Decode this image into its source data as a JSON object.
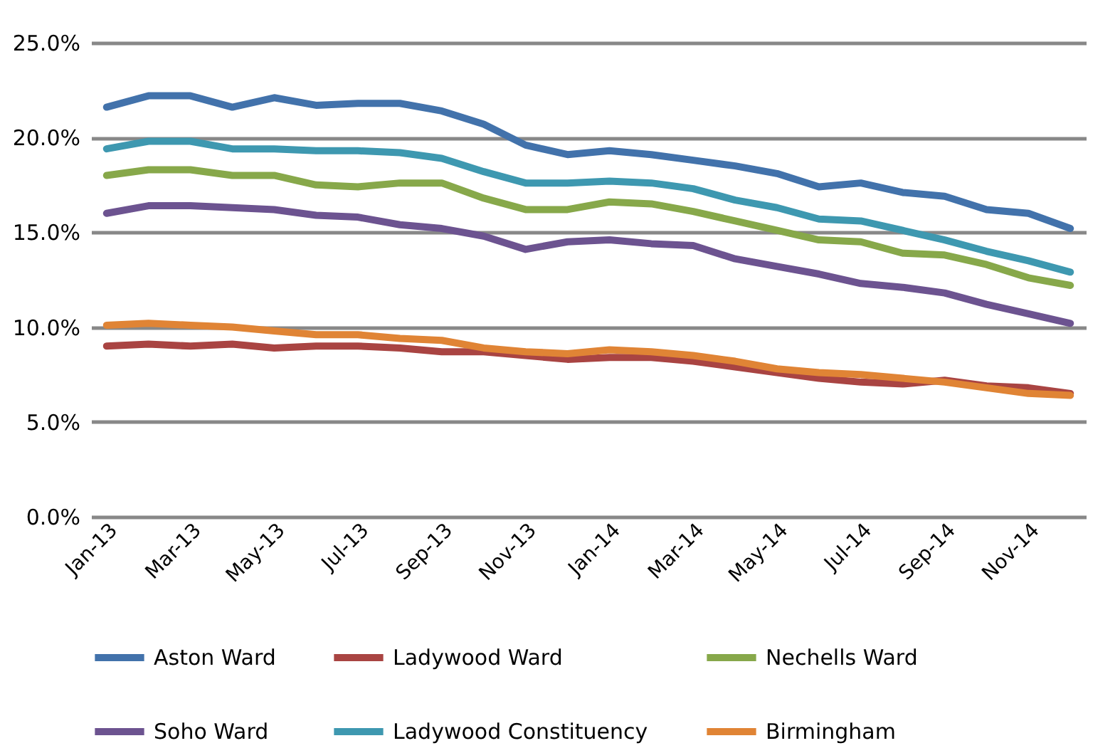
{
  "chart_data": {
    "type": "line",
    "categories": [
      "Jan-13",
      null,
      "Mar-13",
      null,
      "May-13",
      null,
      "Jul-13",
      null,
      "Sep-13",
      null,
      "Nov-13",
      null,
      "Jan-14",
      null,
      "Mar-14",
      null,
      "May-14",
      null,
      "Jul-14",
      null,
      "Sep-14",
      null,
      "Nov-14",
      null
    ],
    "series": [
      {
        "name": "Aston Ward",
        "color": "#4272ab",
        "values": [
          21.6,
          22.2,
          22.2,
          21.6,
          22.1,
          21.7,
          21.8,
          21.8,
          21.4,
          20.7,
          19.6,
          19.1,
          19.3,
          19.1,
          18.8,
          18.5,
          18.1,
          17.4,
          17.6,
          17.1,
          16.9,
          16.2,
          16.0,
          15.2
        ]
      },
      {
        "name": "Ladywood Ward",
        "color": "#a94442",
        "values": [
          9.0,
          9.1,
          9.0,
          9.1,
          8.9,
          9.0,
          9.0,
          8.9,
          8.7,
          8.7,
          8.5,
          8.3,
          8.4,
          8.4,
          8.2,
          7.9,
          7.6,
          7.3,
          7.1,
          7.0,
          7.2,
          6.9,
          6.8,
          6.5
        ]
      },
      {
        "name": "Nechells Ward",
        "color": "#87a84a",
        "values": [
          18.0,
          18.3,
          18.3,
          18.0,
          18.0,
          17.5,
          17.4,
          17.6,
          17.6,
          16.8,
          16.2,
          16.2,
          16.6,
          16.5,
          16.1,
          15.6,
          15.1,
          14.6,
          14.5,
          13.9,
          13.8,
          13.3,
          12.6,
          12.2
        ]
      },
      {
        "name": "Soho Ward",
        "color": "#6c5390",
        "values": [
          16.0,
          16.4,
          16.4,
          16.3,
          16.2,
          15.9,
          15.8,
          15.4,
          15.2,
          14.8,
          14.1,
          14.5,
          14.6,
          14.4,
          14.3,
          13.6,
          13.2,
          12.8,
          12.3,
          12.1,
          11.8,
          11.2,
          10.7,
          10.2
        ]
      },
      {
        "name": "Ladywood Constituency",
        "color": "#3e98b0",
        "values": [
          19.4,
          19.8,
          19.8,
          19.4,
          19.4,
          19.3,
          19.3,
          19.2,
          18.9,
          18.2,
          17.6,
          17.6,
          17.7,
          17.6,
          17.3,
          16.7,
          16.3,
          15.7,
          15.6,
          15.1,
          14.6,
          14.0,
          13.5,
          12.9
        ]
      },
      {
        "name": "Birmingham",
        "color": "#e08435",
        "values": [
          10.1,
          10.2,
          10.1,
          10.0,
          9.8,
          9.6,
          9.6,
          9.4,
          9.3,
          8.9,
          8.7,
          8.6,
          8.8,
          8.7,
          8.5,
          8.2,
          7.8,
          7.6,
          7.5,
          7.3,
          7.1,
          6.8,
          6.5,
          6.4
        ]
      }
    ],
    "ylim": [
      0,
      25
    ],
    "yticks": [
      {
        "value": 0,
        "label": "0.0%"
      },
      {
        "value": 5,
        "label": "5.0%"
      },
      {
        "value": 10,
        "label": "10.0%"
      },
      {
        "value": 15,
        "label": "15.0%"
      },
      {
        "value": 20,
        "label": "20.0%"
      },
      {
        "value": 25,
        "label": "25.0%"
      }
    ],
    "grid": "y",
    "legend": "bottom",
    "line_style": "solid"
  }
}
